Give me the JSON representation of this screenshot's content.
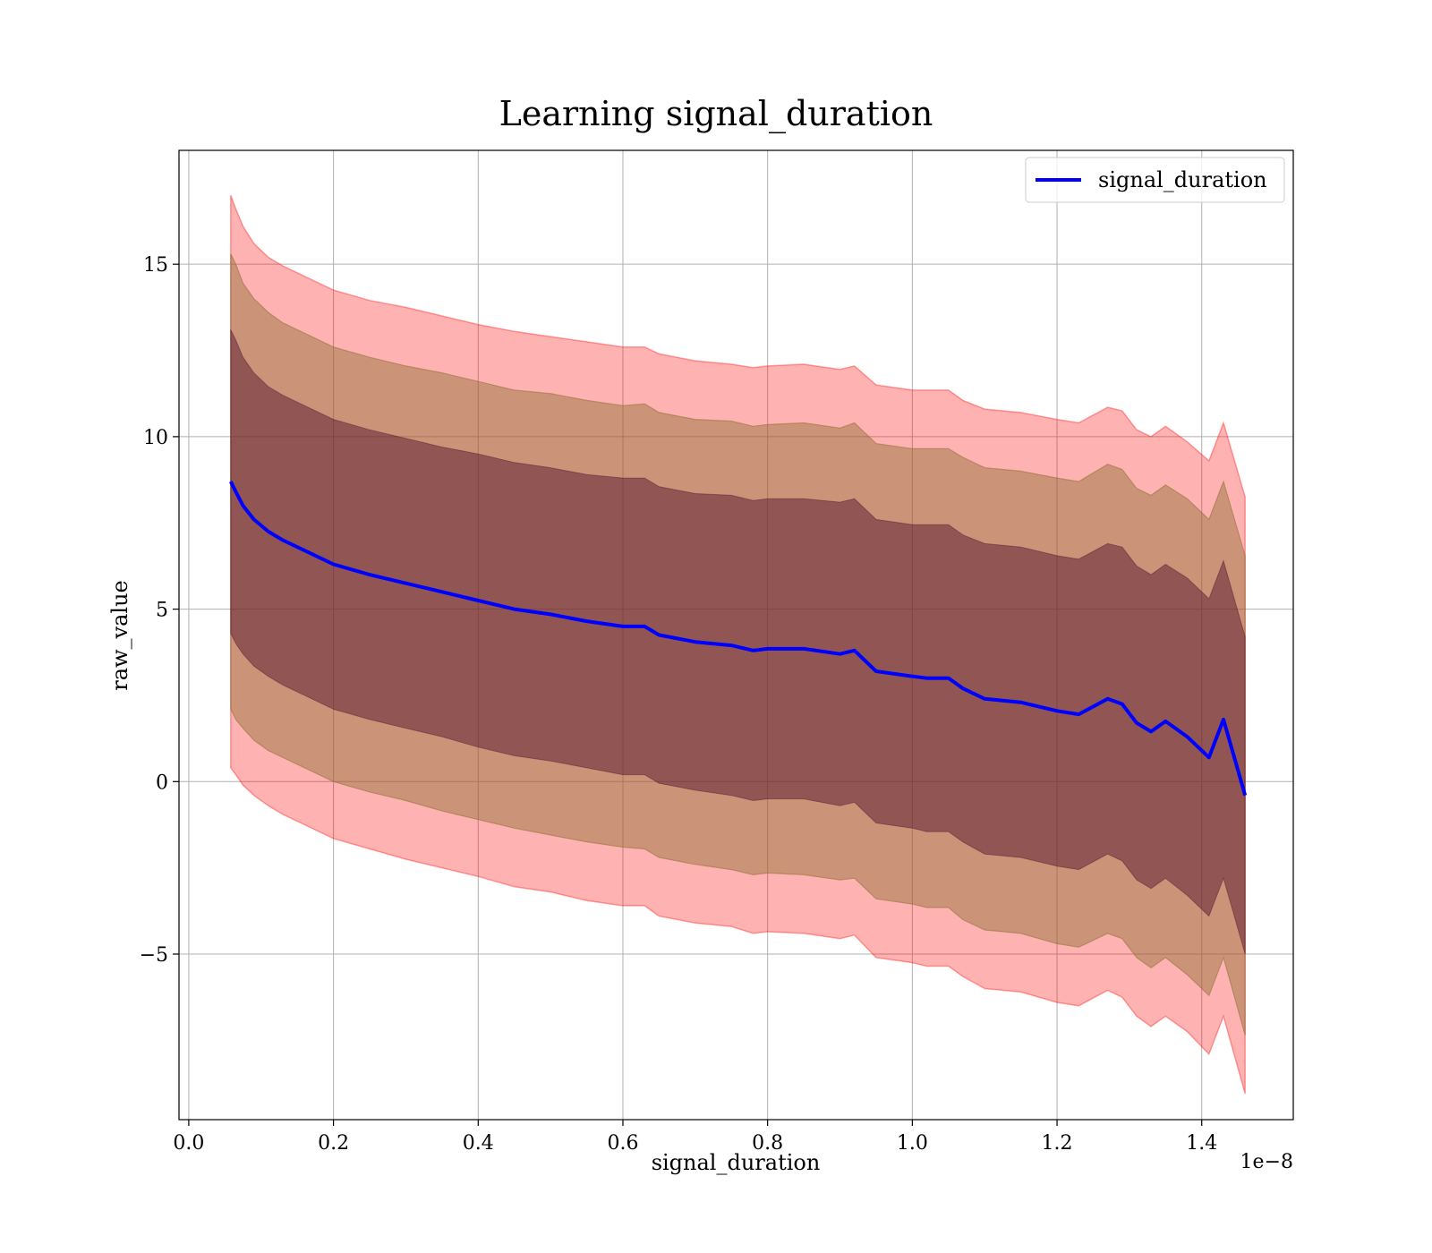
{
  "chart_data": {
    "type": "area",
    "title": "Learning signal_duration",
    "xlabel": "signal_duration",
    "ylabel": "raw_value",
    "x_offset_label": "1e−8",
    "xlim": [
      -0.0135,
      1.5265
    ],
    "ylim": [
      -9.8,
      18.3
    ],
    "x_ticks": [
      0.0,
      0.2,
      0.4,
      0.6,
      0.8,
      1.0,
      1.2,
      1.4
    ],
    "x_tick_labels": [
      "0.0",
      "0.2",
      "0.4",
      "0.6",
      "0.8",
      "1.0",
      "1.2",
      "1.4"
    ],
    "y_ticks": [
      -5,
      0,
      5,
      10,
      15
    ],
    "y_tick_labels": [
      "−5",
      "0",
      "5",
      "10",
      "15"
    ],
    "grid": true,
    "legend": {
      "position": "top-right",
      "entries": [
        "signal_duration"
      ]
    },
    "colors": {
      "line": "#0000ff",
      "band": "#ff0000",
      "inner_band": "#4b0a28",
      "mid_band": "#8b6e32"
    },
    "x": [
      0.058,
      0.065,
      0.075,
      0.09,
      0.11,
      0.13,
      0.16,
      0.2,
      0.25,
      0.3,
      0.35,
      0.4,
      0.45,
      0.5,
      0.55,
      0.6,
      0.63,
      0.65,
      0.7,
      0.75,
      0.78,
      0.8,
      0.85,
      0.9,
      0.92,
      0.95,
      1.0,
      1.02,
      1.05,
      1.07,
      1.1,
      1.15,
      1.2,
      1.23,
      1.27,
      1.29,
      1.31,
      1.33,
      1.35,
      1.38,
      1.41,
      1.43,
      1.46
    ],
    "series": [
      {
        "name": "signal_duration",
        "values": [
          8.7,
          8.4,
          8.0,
          7.6,
          7.25,
          7.0,
          6.7,
          6.3,
          6.0,
          5.75,
          5.5,
          5.25,
          5.0,
          4.85,
          4.65,
          4.5,
          4.5,
          4.25,
          4.05,
          3.95,
          3.8,
          3.85,
          3.85,
          3.7,
          3.8,
          3.2,
          3.05,
          3.0,
          3.0,
          2.7,
          2.4,
          2.3,
          2.05,
          1.95,
          2.4,
          2.25,
          1.7,
          1.45,
          1.75,
          1.3,
          0.7,
          1.8,
          -0.4
        ],
        "band_1std": [
          4.4,
          4.4,
          4.3,
          4.25,
          4.2,
          4.2,
          4.2,
          4.2,
          4.2,
          4.2,
          4.2,
          4.25,
          4.25,
          4.25,
          4.25,
          4.3,
          4.3,
          4.3,
          4.3,
          4.35,
          4.35,
          4.35,
          4.35,
          4.4,
          4.4,
          4.4,
          4.4,
          4.45,
          4.45,
          4.45,
          4.5,
          4.5,
          4.5,
          4.5,
          4.5,
          4.55,
          4.55,
          4.55,
          4.55,
          4.6,
          4.6,
          4.6,
          4.6
        ],
        "band_1_5std": [
          6.6,
          6.6,
          6.45,
          6.4,
          6.35,
          6.3,
          6.3,
          6.3,
          6.3,
          6.3,
          6.35,
          6.35,
          6.35,
          6.4,
          6.4,
          6.4,
          6.45,
          6.45,
          6.45,
          6.5,
          6.5,
          6.5,
          6.55,
          6.55,
          6.6,
          6.6,
          6.6,
          6.65,
          6.65,
          6.7,
          6.7,
          6.7,
          6.75,
          6.75,
          6.8,
          6.8,
          6.8,
          6.85,
          6.85,
          6.9,
          6.9,
          6.9,
          6.95
        ],
        "band_2std": [
          8.3,
          8.2,
          8.1,
          8.0,
          7.95,
          7.95,
          7.95,
          7.95,
          7.95,
          8.0,
          8.0,
          8.0,
          8.05,
          8.05,
          8.1,
          8.1,
          8.1,
          8.15,
          8.15,
          8.15,
          8.2,
          8.2,
          8.25,
          8.25,
          8.25,
          8.3,
          8.3,
          8.35,
          8.35,
          8.35,
          8.4,
          8.4,
          8.45,
          8.45,
          8.45,
          8.5,
          8.5,
          8.55,
          8.55,
          8.55,
          8.6,
          8.6,
          8.65
        ]
      }
    ]
  }
}
